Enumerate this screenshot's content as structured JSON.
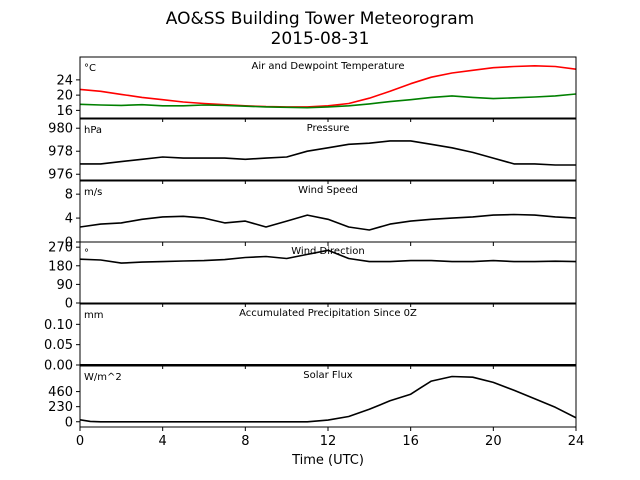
{
  "figure": {
    "title_line1": "AO&SS Building Tower Meteorogram",
    "title_line2": "2015-08-31",
    "xlabel": "Time (UTC)",
    "xticks": [
      0,
      4,
      8,
      12,
      16,
      20,
      24
    ],
    "xlim": [
      0,
      24
    ]
  },
  "chart_data": [
    {
      "type": "line",
      "title": "Air and Dewpoint Temperature",
      "unit": "°C",
      "ylim": [
        14,
        30
      ],
      "yticks": [
        16,
        20,
        24
      ],
      "series": [
        {
          "color": "#ff0000",
          "x": [
            0,
            1,
            2,
            3,
            4,
            5,
            6,
            7,
            8,
            9,
            10,
            11,
            12,
            13,
            14,
            15,
            16,
            17,
            18,
            19,
            20,
            21,
            22,
            23,
            24
          ],
          "y": [
            21.5,
            21,
            20.2,
            19.4,
            18.8,
            18.2,
            17.8,
            17.5,
            17.2,
            17,
            16.9,
            16.9,
            17.2,
            17.8,
            19.2,
            21,
            23,
            24.7,
            25.8,
            26.5,
            27.2,
            27.5,
            27.7,
            27.5,
            26.8
          ]
        },
        {
          "color": "#008000",
          "x": [
            0,
            1,
            2,
            3,
            4,
            5,
            6,
            7,
            8,
            9,
            10,
            11,
            12,
            13,
            14,
            15,
            16,
            17,
            18,
            19,
            20,
            21,
            22,
            23,
            24
          ],
          "y": [
            17.6,
            17.4,
            17.3,
            17.5,
            17.2,
            17.2,
            17.4,
            17.3,
            17.1,
            16.9,
            16.8,
            16.7,
            16.9,
            17.2,
            17.7,
            18.3,
            18.8,
            19.4,
            19.8,
            19.4,
            19.1,
            19.3,
            19.5,
            19.8,
            20.3
          ]
        }
      ]
    },
    {
      "type": "line",
      "title": "Pressure",
      "unit": "hPa",
      "ylim": [
        975.5,
        980.8
      ],
      "yticks": [
        976,
        978,
        980
      ],
      "series": [
        {
          "color": "#000000",
          "x": [
            0,
            1,
            2,
            3,
            4,
            5,
            6,
            7,
            8,
            9,
            10,
            11,
            12,
            13,
            14,
            15,
            16,
            17,
            18,
            19,
            20,
            21,
            22,
            23,
            24
          ],
          "y": [
            976.9,
            976.9,
            977.1,
            977.3,
            977.5,
            977.4,
            977.4,
            977.4,
            977.3,
            977.4,
            977.5,
            978,
            978.3,
            978.6,
            978.7,
            978.9,
            978.9,
            978.6,
            978.3,
            977.9,
            977.4,
            976.9,
            976.9,
            976.8,
            976.8
          ]
        }
      ]
    },
    {
      "type": "line",
      "title": "Wind Speed",
      "unit": "m/s",
      "ylim": [
        0,
        10.2
      ],
      "yticks": [
        0,
        4,
        8
      ],
      "series": [
        {
          "color": "#000000",
          "x": [
            0,
            1,
            2,
            3,
            4,
            5,
            6,
            7,
            8,
            9,
            10,
            11,
            12,
            13,
            14,
            15,
            16,
            17,
            18,
            19,
            20,
            21,
            22,
            23,
            24
          ],
          "y": [
            2.5,
            3,
            3.2,
            3.8,
            4.2,
            4.3,
            4,
            3.2,
            3.5,
            2.5,
            3.5,
            4.5,
            3.8,
            2.5,
            2,
            3,
            3.5,
            3.8,
            4,
            4.2,
            4.5,
            4.6,
            4.5,
            4.2,
            4
          ]
        }
      ]
    },
    {
      "type": "line",
      "title": "Wind Direction",
      "unit": "°",
      "ylim": [
        0,
        295
      ],
      "yticks": [
        0,
        90,
        180,
        270
      ],
      "series": [
        {
          "color": "#000000",
          "x": [
            0,
            1,
            2,
            3,
            4,
            5,
            6,
            7,
            8,
            9,
            10,
            11,
            12,
            13,
            14,
            15,
            16,
            17,
            18,
            19,
            20,
            21,
            22,
            23,
            24
          ],
          "y": [
            212,
            208,
            193,
            198,
            200,
            203,
            205,
            210,
            220,
            225,
            215,
            235,
            255,
            215,
            200,
            200,
            205,
            205,
            200,
            200,
            205,
            200,
            200,
            202,
            200
          ]
        }
      ]
    },
    {
      "type": "line",
      "title": "Accumulated Precipitation Since 0Z",
      "unit": "mm",
      "ylim": [
        0,
        0.15
      ],
      "yticks": [
        0.0,
        0.05,
        0.1
      ],
      "series": [
        {
          "color": "#000000",
          "x": [
            0,
            24
          ],
          "y": [
            0,
            0
          ]
        }
      ]
    },
    {
      "type": "line",
      "title": "Solar Flux",
      "unit": "W/m^2",
      "ylim": [
        -80,
        850
      ],
      "yticks": [
        0,
        230,
        460
      ],
      "series": [
        {
          "color": "#000000",
          "x": [
            0,
            0.5,
            1,
            2,
            4,
            6,
            8,
            9,
            10,
            11,
            12,
            13,
            14,
            15,
            16,
            16.5,
            17,
            18,
            19,
            20,
            21,
            22,
            23,
            24
          ],
          "y": [
            30,
            5,
            0,
            0,
            0,
            0,
            0,
            0,
            0,
            0,
            25,
            80,
            190,
            320,
            420,
            520,
            620,
            690,
            680,
            600,
            480,
            350,
            220,
            60
          ]
        }
      ]
    }
  ]
}
